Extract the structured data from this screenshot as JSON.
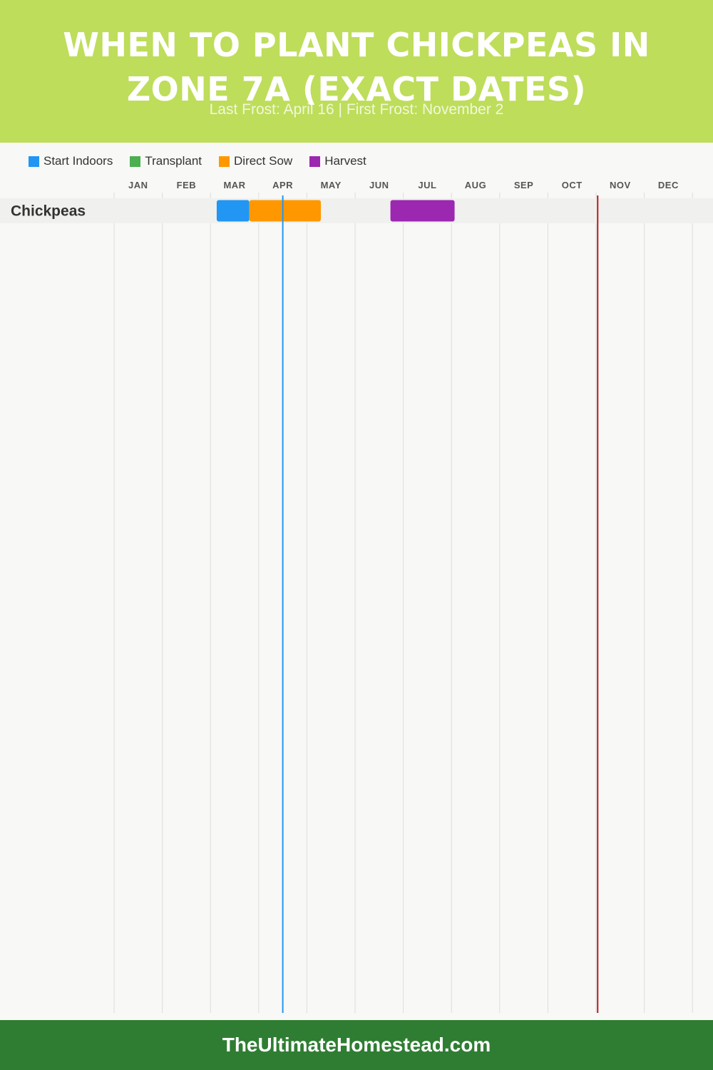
{
  "header": {
    "title": "WHEN TO PLANT CHICKPEAS IN ZONE 7A (EXACT DATES)",
    "subtitle": "Last Frost: April 16 | First Frost: November 2",
    "background": "#bedd5a"
  },
  "legend": [
    {
      "label": "Start Indoors",
      "color": "#2196f3"
    },
    {
      "label": "Transplant",
      "color": "#4caf50"
    },
    {
      "label": "Direct Sow",
      "color": "#ff9800"
    },
    {
      "label": "Harvest",
      "color": "#9c27b0"
    }
  ],
  "chart_data": {
    "type": "gantt",
    "months": [
      "JAN",
      "FEB",
      "MAR",
      "APR",
      "MAY",
      "JUN",
      "JUL",
      "AUG",
      "SEP",
      "OCT",
      "NOV",
      "DEC"
    ],
    "rows": [
      {
        "name": "Chickpeas",
        "tasks": [
          {
            "activity": "Start Indoors",
            "start": "Mar 5",
            "end": "Mar 26"
          },
          {
            "activity": "Direct Sow",
            "start": "Mar 26",
            "end": "May 10"
          },
          {
            "activity": "Harvest",
            "start": "Jun 23",
            "end": "Aug 3"
          }
        ]
      }
    ],
    "markers": [
      {
        "label": "Last Frost",
        "date": "Apr 16",
        "color": "#2196f3"
      },
      {
        "label": "First Frost",
        "date": "Nov 2",
        "color": "#b71c1c"
      }
    ],
    "grid": true
  },
  "footer": {
    "text": "TheUltimateHomestead.com",
    "background": "#2f7d32"
  }
}
